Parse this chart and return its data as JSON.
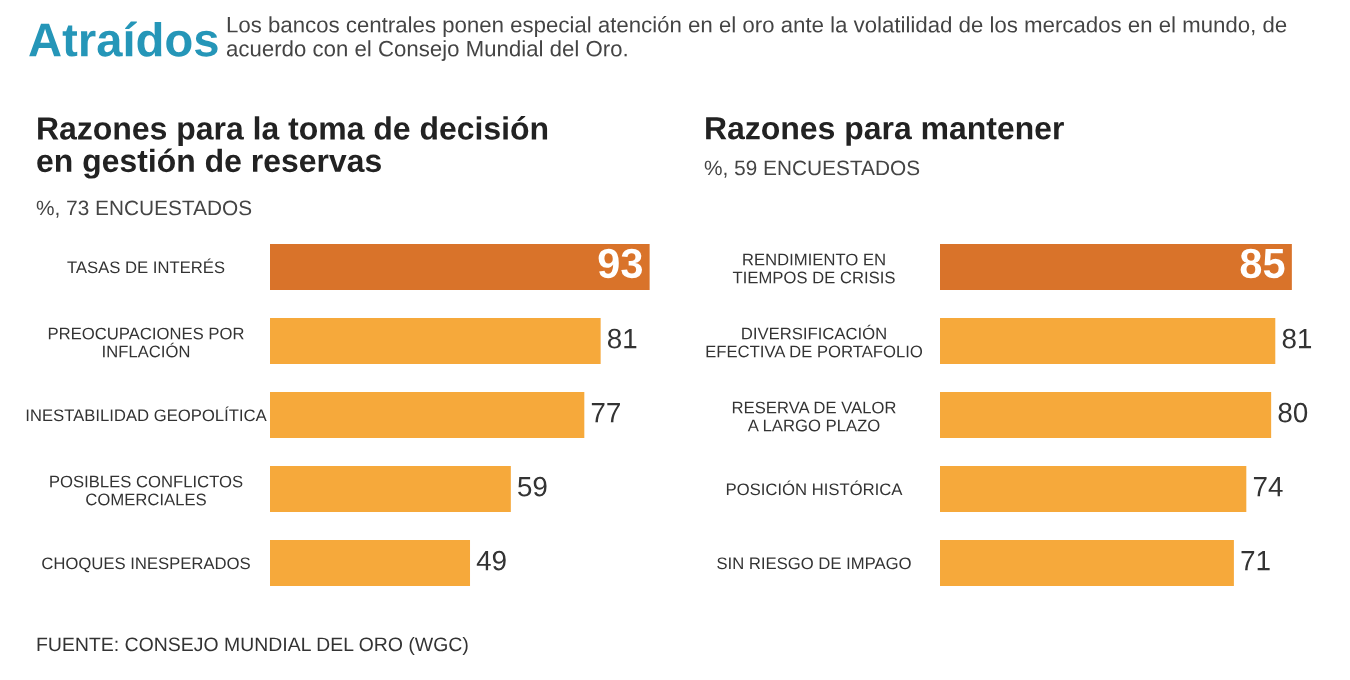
{
  "chart_data": [
    {
      "type": "bar",
      "orientation": "horizontal",
      "title": "Razones para la toma de decisión\nen gestión de reservas",
      "subtitle": "%, 73 ENCUESTADOS",
      "categories": [
        "TASAS DE INTERÉS",
        "PREOCUPACIONES POR\nINFLACIÓN",
        "INESTABILIDAD GEOPOLÍTICA",
        "POSIBLES CONFLICTOS\nCOMERCIALES",
        "CHOQUES INESPERADOS"
      ],
      "values": [
        93,
        81,
        77,
        59,
        49
      ],
      "colors": [
        "#d9732a",
        "#f6a93b",
        "#f6a93b",
        "#f6a93b",
        "#f6a93b"
      ],
      "data_labels": true,
      "annotations": [
        "Atraídos",
        "Los bancos centrales ponen especial atención en el oro ante la volatilidad de los mercados en el mundo, de acuerdo con el Consejo Mundial del Oro.",
        "FUENTE: CONSEJO MUNDIAL DEL ORO (WGC)"
      ]
    },
    {
      "type": "bar",
      "orientation": "horizontal",
      "title": "Razones para mantener",
      "subtitle": "%, 59 ENCUESTADOS",
      "categories": [
        "RENDIMIENTO EN\nTIEMPOS DE CRISIS",
        "DIVERSIFICACIÓN\nEFECTIVA DE PORTAFOLIO",
        "RESERVA DE VALOR\nA LARGO PLAZO",
        "POSICIÓN HISTÓRICA",
        "SIN RIESGO DE IMPAGO"
      ],
      "values": [
        85,
        81,
        80,
        74,
        71
      ],
      "colors": [
        "#d9732a",
        "#f6a93b",
        "#f6a93b",
        "#f6a93b",
        "#f6a93b"
      ],
      "data_labels": true
    }
  ]
}
